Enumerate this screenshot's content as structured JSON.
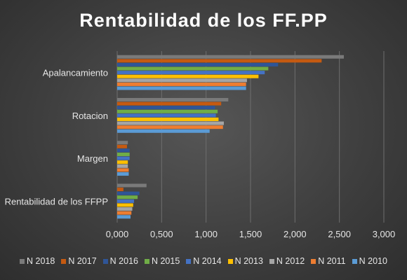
{
  "chart_data": {
    "type": "bar",
    "orientation": "horizontal",
    "title": "Rentabilidad de los FF.PP",
    "categories": [
      "Apalancamiento",
      "Rotacion",
      "Margen",
      "Rentabilidad de los FFPP"
    ],
    "xlim": [
      0,
      3
    ],
    "xticks": [
      "0,000",
      "0,500",
      "1,000",
      "1,500",
      "2,000",
      "2,500",
      "3,000"
    ],
    "xtick_values": [
      0,
      0.5,
      1,
      1.5,
      2,
      2.5,
      3
    ],
    "grid": true,
    "legend_position": "bottom",
    "series": [
      {
        "name": "N 2018",
        "color": "#7a7a7a",
        "values": [
          2.55,
          1.25,
          0.12,
          0.33
        ]
      },
      {
        "name": "N 2017",
        "color": "#c55a11",
        "values": [
          2.3,
          1.17,
          0.11,
          0.07
        ]
      },
      {
        "name": "N 2016",
        "color": "#2f5597",
        "values": [
          1.81,
          1.1,
          0.14,
          0.25
        ]
      },
      {
        "name": "N 2015",
        "color": "#70ad47",
        "values": [
          1.7,
          1.13,
          0.14,
          0.23
        ]
      },
      {
        "name": "N 2014",
        "color": "#4472c4",
        "values": [
          1.66,
          1.11,
          0.14,
          0.19
        ]
      },
      {
        "name": "N 2013",
        "color": "#ffc000",
        "values": [
          1.59,
          1.14,
          0.12,
          0.18
        ]
      },
      {
        "name": "N 2012",
        "color": "#a5a5a5",
        "values": [
          1.46,
          1.2,
          0.12,
          0.17
        ]
      },
      {
        "name": "N 2011",
        "color": "#ed7d31",
        "values": [
          1.45,
          1.19,
          0.13,
          0.16
        ]
      },
      {
        "name": "N 2010",
        "color": "#5b9bd5",
        "values": [
          1.45,
          1.04,
          0.13,
          0.15
        ]
      }
    ]
  }
}
